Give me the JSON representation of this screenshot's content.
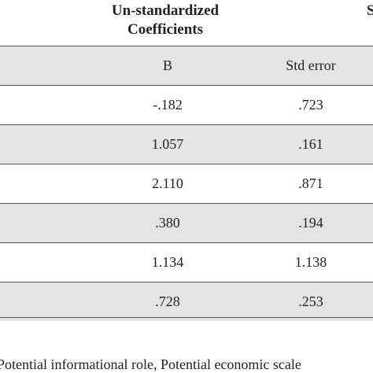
{
  "header": {
    "title_line_1": "Un-standardized",
    "title_line_2": "Coefficients",
    "cut_title": "S"
  },
  "table": {
    "columns": [
      "B",
      "Std error"
    ],
    "rows": [
      [
        "-.182",
        ".723"
      ],
      [
        "1.057",
        ".161"
      ],
      [
        "2.110",
        ".871"
      ],
      [
        ".380",
        ".194"
      ],
      [
        "1.134",
        "1.138"
      ],
      [
        ".728",
        ".253"
      ]
    ]
  },
  "footnote": "Potential informational role, Potential economic scale"
}
